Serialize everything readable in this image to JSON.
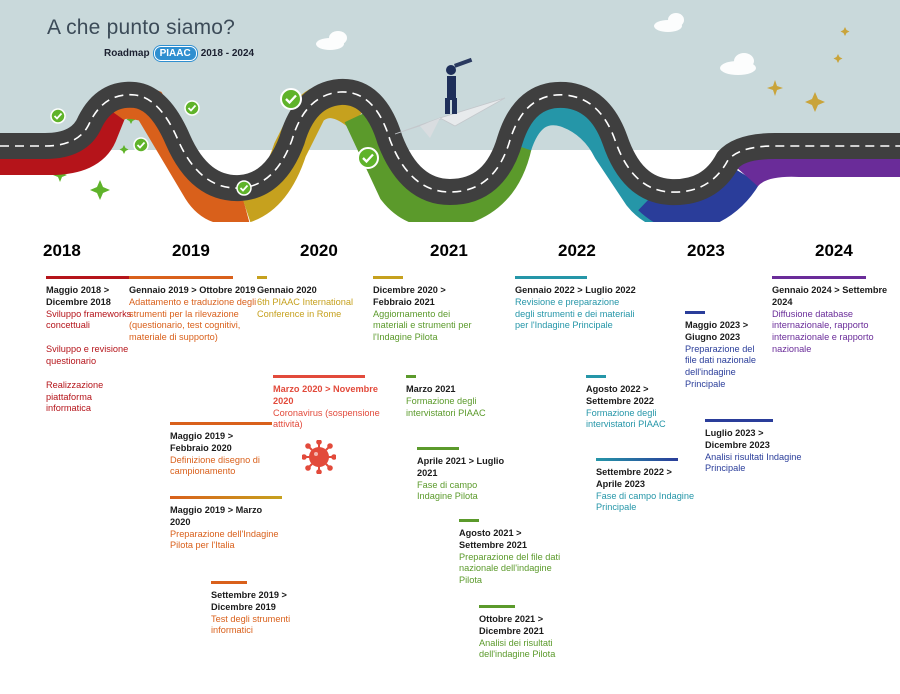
{
  "header": {
    "title": "A che punto siamo?",
    "subtitle_prefix": "Roadmap",
    "logo_text": "PIAAC",
    "subtitle_suffix": "2018 - 2024"
  },
  "years": [
    "2018",
    "2019",
    "2020",
    "2021",
    "2022",
    "2023",
    "2024"
  ],
  "colors": {
    "sky": "#c9d9db",
    "road": "#3f3f3f",
    "check": "#5fb32a",
    "y2018": "#b5141a",
    "y2019": "#d9601b",
    "y2020": "#c6a11e",
    "y2021": "#5b9a2b",
    "y2022": "#2596a8",
    "y2023": "#2a3d9a",
    "y2024": "#6a2c99",
    "covid": "#e24a3b"
  },
  "events": [
    {
      "id": "e1",
      "header": "Maggio 2018 > Dicembre 2018",
      "body": "Sviluppo frameworks concettuali",
      "body2": "Sviluppo e revisione questionario",
      "body3": "Realizzazione piattaforma informatica"
    },
    {
      "id": "e2",
      "header": "Gennaio 2019 > Ottobre 2019",
      "body": "Adattamento e traduzione degli strumenti per la rilevazione (questionario, test cognitivi, materiale di supporto)"
    },
    {
      "id": "e3",
      "header": "Maggio 2019 > Febbraio 2020",
      "body": "Definizione disegno di campionamento"
    },
    {
      "id": "e4",
      "header": "Maggio 2019 > Marzo 2020",
      "body": "Preparazione dell'Indagine Pilota per l'Italia"
    },
    {
      "id": "e5",
      "header": "Settembre 2019 > Dicembre 2019",
      "body": "Test degli strumenti informatici"
    },
    {
      "id": "e6",
      "header": "Gennaio 2020",
      "body": "6th PIAAC International Conference in Rome"
    },
    {
      "id": "e7",
      "header": "Marzo 2020 > Novembre 2020",
      "body": "Coronavirus (sospensione attività)"
    },
    {
      "id": "e8",
      "header": "Dicembre 2020 > Febbraio 2021",
      "body": "Aggiornamento dei materiali e strumenti per l'Indagine Pilota"
    },
    {
      "id": "e9",
      "header": "Marzo 2021",
      "body": "Formazione degli intervistatori PIAAC"
    },
    {
      "id": "e10",
      "header": "Aprile 2021 > Luglio 2021",
      "body": "Fase di campo Indagine Pilota"
    },
    {
      "id": "e11",
      "header": "Agosto 2021 > Settembre 2021",
      "body": "Preparazione del file dati nazionale dell'indagine Pilota"
    },
    {
      "id": "e12",
      "header": "Ottobre 2021 > Dicembre 2021",
      "body": "Analisi dei risultati dell'indagine Pilota"
    },
    {
      "id": "e13",
      "header": "Gennaio 2022 > Luglio 2022",
      "body": "Revisione e preparazione degli strumenti e dei materiali per l'Indagine Principale"
    },
    {
      "id": "e14",
      "header": "Agosto 2022 > Settembre 2022",
      "body": "Formazione degli intervistatori PIAAC"
    },
    {
      "id": "e15",
      "header": "Settembre 2022 > Aprile 2023",
      "body": "Fase di campo Indagine Principale"
    },
    {
      "id": "e16",
      "header": "Maggio 2023 > Giugno 2023",
      "body": "Preparazione del file dati nazionale dell'indagine Principale"
    },
    {
      "id": "e17",
      "header": "Luglio 2023 > Dicembre 2023",
      "body": "Analisi risultati Indagine Principale"
    },
    {
      "id": "e18",
      "header": "Gennaio 2024 > Settembre 2024",
      "body": "Diffusione database internazionale, rapporto internazionale e rapporto nazionale"
    }
  ]
}
